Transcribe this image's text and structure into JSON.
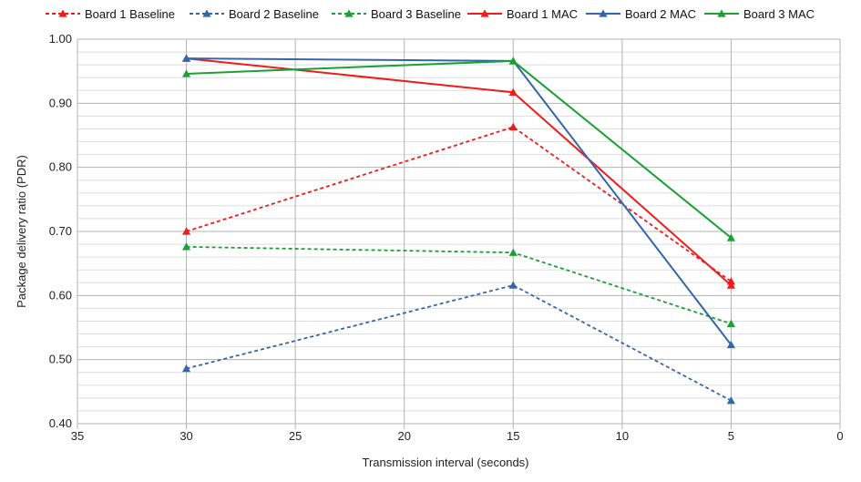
{
  "chart_data": {
    "type": "line",
    "xlabel": "Transmission interval (seconds)",
    "ylabel": "Package delivery ratio (PDR)",
    "xlim": [
      35,
      0
    ],
    "ylim": [
      0.4,
      1.0
    ],
    "x_reversed": true,
    "x_ticks": [
      "35",
      "30",
      "25",
      "20",
      "15",
      "10",
      "5",
      "0"
    ],
    "y_ticks": [
      "0.40",
      "0.50",
      "0.60",
      "0.70",
      "0.80",
      "0.90",
      "1.00"
    ],
    "grid": true,
    "legend_position": "top",
    "marker": "triangle",
    "x": [
      30,
      15,
      5
    ],
    "series": [
      {
        "name": "Board 1 Baseline",
        "values": [
          0.7,
          0.863,
          0.622
        ],
        "color": "#ee1c1c",
        "dash": true
      },
      {
        "name": "Board 2 Baseline",
        "values": [
          0.486,
          0.616,
          0.436
        ],
        "color": "#3566a8",
        "dash": true
      },
      {
        "name": "Board 3 Baseline",
        "values": [
          0.676,
          0.667,
          0.556
        ],
        "color": "#1aa035",
        "dash": true
      },
      {
        "name": "Board 1 MAC",
        "values": [
          0.97,
          0.917,
          0.616
        ],
        "color": "#ee1c1c",
        "dash": false
      },
      {
        "name": "Board 2 MAC",
        "values": [
          0.97,
          0.966,
          0.523
        ],
        "color": "#3566a8",
        "dash": false
      },
      {
        "name": "Board 3 MAC",
        "values": [
          0.946,
          0.966,
          0.69
        ],
        "color": "#1aa035",
        "dash": false
      }
    ]
  }
}
